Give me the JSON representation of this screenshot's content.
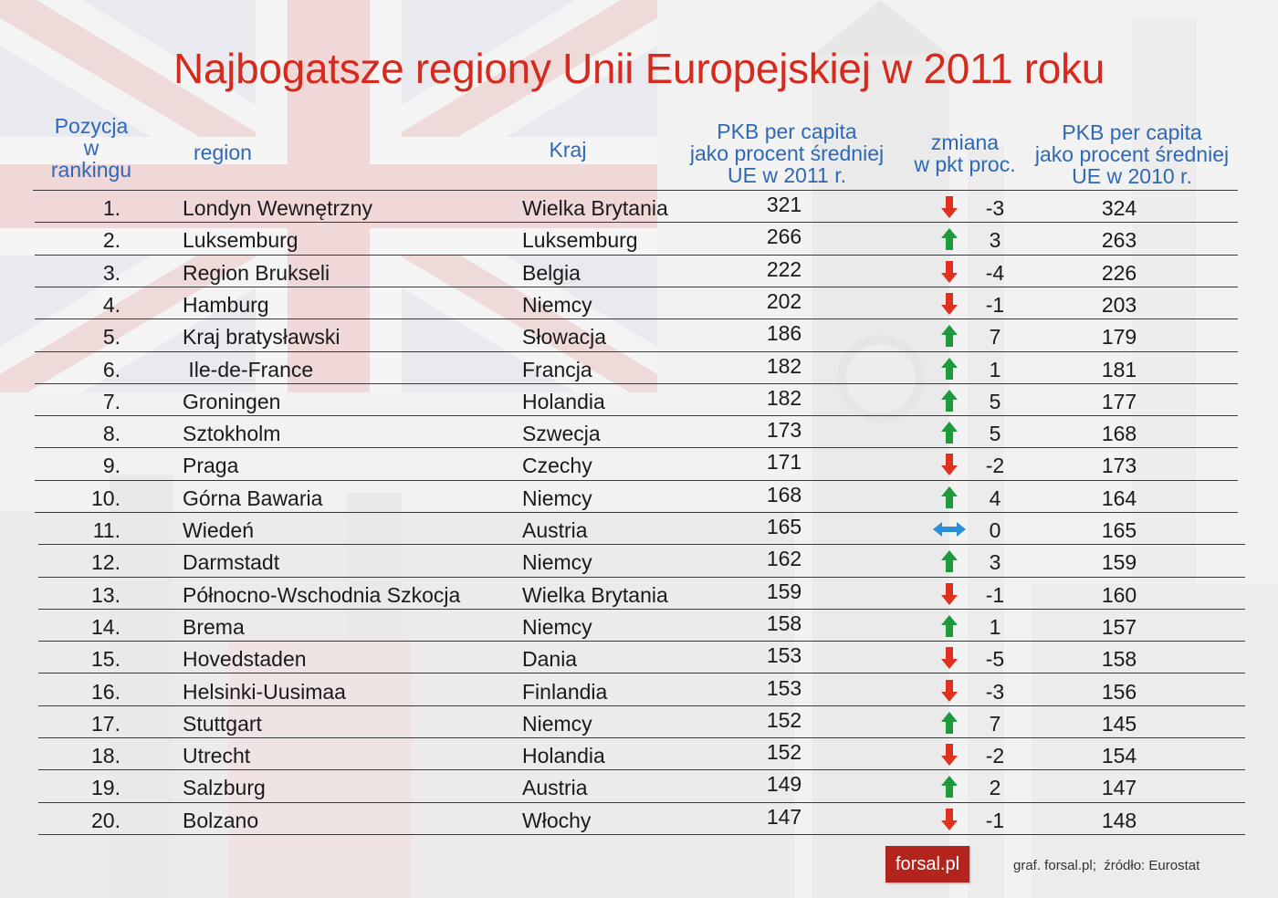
{
  "title": "Najbogatsze regiony Unii Europejskiej w 2011 roku",
  "headers": {
    "pozycja": [
      "Pozycja",
      "w",
      "rankingu"
    ],
    "region": "region",
    "kraj": "Kraj",
    "pkb_2011": [
      "PKB per capita",
      "jako procent średniej",
      "UE w 2011 r."
    ],
    "zmiana": [
      "zmiana",
      "w pkt proc."
    ],
    "pkb_2010": [
      "PKB per capita",
      "jako procent średniej",
      "UE w 2010 r."
    ]
  },
  "colors": {
    "title": "#d42b1e",
    "header": "#2f68b5",
    "up": "#1e9a3c",
    "down": "#e0301e",
    "unchanged": "#2a8fd6",
    "logo_bg": "#b3241d"
  },
  "chart_data": {
    "type": "table",
    "columns": [
      "Pozycja w rankingu",
      "region",
      "Kraj",
      "PKB per capita jako procent średniej UE w 2011 r.",
      "zmiana w pkt proc.",
      "PKB per capita jako procent średniej UE w 2010 r."
    ],
    "rows": [
      {
        "rank": "1.",
        "region": "Londyn Wewnętrzny",
        "kraj": "Wielka Brytania",
        "pkb2011": "321",
        "dir": "down",
        "zmiana": "-3",
        "pkb2010": "324"
      },
      {
        "rank": "2.",
        "region": "Luksemburg",
        "kraj": "Luksemburg",
        "pkb2011": "266",
        "dir": "up",
        "zmiana": "3",
        "pkb2010": "263"
      },
      {
        "rank": "3.",
        "region": "Region Brukseli",
        "kraj": "Belgia",
        "pkb2011": "222",
        "dir": "down",
        "zmiana": "-4",
        "pkb2010": "226"
      },
      {
        "rank": "4.",
        "region": "Hamburg",
        "kraj": "Niemcy",
        "pkb2011": "202",
        "dir": "down",
        "zmiana": "-1",
        "pkb2010": "203"
      },
      {
        "rank": "5.",
        "region": "Kraj bratysławski",
        "kraj": "Słowacja",
        "pkb2011": "186",
        "dir": "up",
        "zmiana": "7",
        "pkb2010": "179"
      },
      {
        "rank": "6.",
        "region": " Ile-de-France",
        "kraj": "Francja",
        "pkb2011": "182",
        "dir": "up",
        "zmiana": "1",
        "pkb2010": "181"
      },
      {
        "rank": "7.",
        "region": "Groningen",
        "kraj": "Holandia",
        "pkb2011": "182",
        "dir": "up",
        "zmiana": "5",
        "pkb2010": "177"
      },
      {
        "rank": "8.",
        "region": "Sztokholm",
        "kraj": "Szwecja",
        "pkb2011": "173",
        "dir": "up",
        "zmiana": "5",
        "pkb2010": "168"
      },
      {
        "rank": "9.",
        "region": "Praga",
        "kraj": "Czechy",
        "pkb2011": "171",
        "dir": "down",
        "zmiana": "-2",
        "pkb2010": "173"
      },
      {
        "rank": "10.",
        "region": "Górna Bawaria",
        "kraj": "Niemcy",
        "pkb2011": "168",
        "dir": "up",
        "zmiana": "4",
        "pkb2010": "164"
      },
      {
        "rank": "11.",
        "region": "Wiedeń",
        "kraj": "Austria",
        "pkb2011": "165",
        "dir": "same",
        "zmiana": "0",
        "pkb2010": "165"
      },
      {
        "rank": "12.",
        "region": "Darmstadt",
        "kraj": "Niemcy",
        "pkb2011": "162",
        "dir": "up",
        "zmiana": "3",
        "pkb2010": "159"
      },
      {
        "rank": "13.",
        "region": "Północno-Wschodnia Szkocja",
        "kraj": "Wielka Brytania",
        "pkb2011": "159",
        "dir": "down",
        "zmiana": "-1",
        "pkb2010": "160"
      },
      {
        "rank": "14.",
        "region": "Brema",
        "kraj": "Niemcy",
        "pkb2011": "158",
        "dir": "up",
        "zmiana": "1",
        "pkb2010": "157"
      },
      {
        "rank": "15.",
        "region": "Hovedstaden",
        "kraj": "Dania",
        "pkb2011": "153",
        "dir": "down",
        "zmiana": "-5",
        "pkb2010": "158"
      },
      {
        "rank": "16.",
        "region": "Helsinki-Uusimaa",
        "kraj": "Finlandia",
        "pkb2011": "153",
        "dir": "down",
        "zmiana": "-3",
        "pkb2010": "156"
      },
      {
        "rank": "17.",
        "region": "Stuttgart",
        "kraj": "Niemcy",
        "pkb2011": "152",
        "dir": "up",
        "zmiana": "7",
        "pkb2010": "145"
      },
      {
        "rank": "18.",
        "region": "Utrecht",
        "kraj": "Holandia",
        "pkb2011": "152",
        "dir": "down",
        "zmiana": "-2",
        "pkb2010": "154"
      },
      {
        "rank": "19.",
        "region": "Salzburg",
        "kraj": "Austria",
        "pkb2011": "149",
        "dir": "up",
        "zmiana": "2",
        "pkb2010": "147"
      },
      {
        "rank": "20.",
        "region": "Bolzano",
        "kraj": "Włochy",
        "pkb2011": "147",
        "dir": "down",
        "zmiana": "-1",
        "pkb2010": "148"
      }
    ]
  },
  "footer": {
    "logo": "forsal.pl",
    "source": "graf. forsal.pl;  źródło: Eurostat"
  }
}
